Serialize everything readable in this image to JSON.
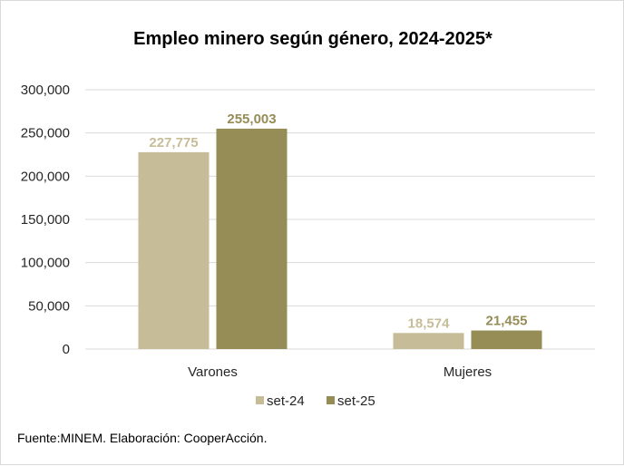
{
  "chart_data": {
    "type": "bar",
    "title": "Empleo minero según género, 2024-2025*",
    "categories": [
      "Varones",
      "Mujeres"
    ],
    "series": [
      {
        "name": "set-24",
        "values": [
          227775,
          18574
        ],
        "labels": [
          "227,775",
          "18,574"
        ],
        "color": "#c6bd98"
      },
      {
        "name": "set-25",
        "values": [
          255003,
          21455
        ],
        "labels": [
          "255,003",
          "21,455"
        ],
        "color": "#968c56"
      }
    ],
    "ylim": [
      0,
      300000
    ],
    "yticks": [
      0,
      50000,
      100000,
      150000,
      200000,
      250000,
      300000
    ],
    "ytick_labels": [
      "0",
      "50,000",
      "100,000",
      "150,000",
      "200,000",
      "250,000",
      "300,000"
    ],
    "grid": true,
    "legend_position": "bottom",
    "source": "Fuente:MINEM. Elaboración: CooperAcción."
  }
}
